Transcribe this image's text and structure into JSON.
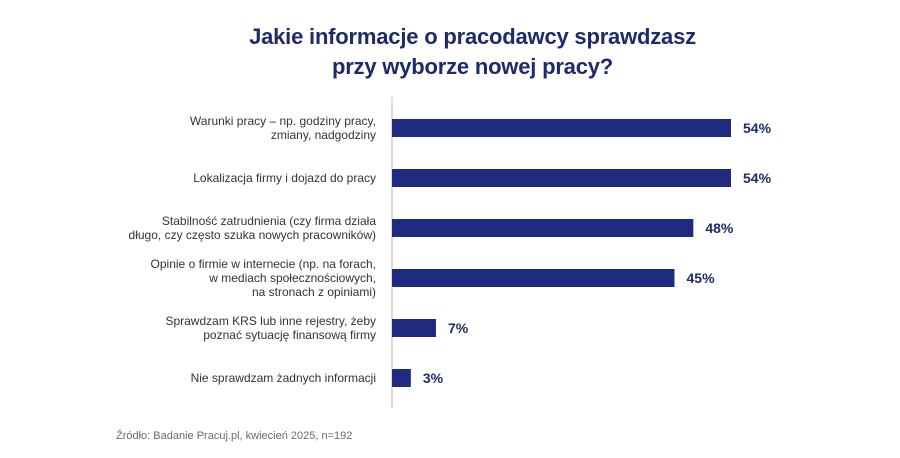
{
  "chart_data": {
    "type": "bar",
    "orientation": "horizontal",
    "title_lines": [
      "Jakie informacje o pracodawcy sprawdzasz",
      "przy wyborze nowej pracy?"
    ],
    "categories": [
      [
        "Warunki pracy – np. godziny pracy,",
        "zmiany, nadgodziny"
      ],
      [
        "Lokalizacja firmy i dojazd do pracy"
      ],
      [
        "Stabilność zatrudnienia (czy firma działa",
        "długo, czy często szuka nowych pracowników)"
      ],
      [
        "Opinie o firmie w internecie (np. na forach,",
        "w mediach społecznościowych,",
        "na stronach z opiniami)"
      ],
      [
        "Sprawdzam KRS lub inne rejestry, żeby",
        "poznać sytuację finansową firmy"
      ],
      [
        "Nie sprawdzam żadnych informacji"
      ]
    ],
    "values": [
      54,
      54,
      48,
      45,
      7,
      3
    ],
    "value_labels": [
      "54%",
      "54%",
      "48%",
      "45%",
      "7%",
      "3%"
    ],
    "xlim": [
      0,
      54
    ],
    "grid": false,
    "bar_color": "#1e2b7e",
    "label_color": "#333333",
    "value_color": "#1e2b6b",
    "title_color": "#1e2b6b"
  },
  "source": "Źródło: Badanie Pracuj.pl, kwiecień 2025, n=192"
}
